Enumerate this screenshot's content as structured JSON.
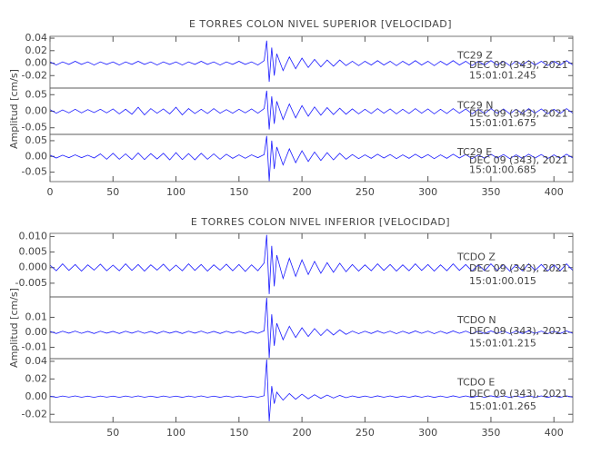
{
  "chart_data": [
    {
      "type": "line",
      "title": "E TORRES COLON NIVEL SUPERIOR [VELOCIDAD]",
      "ylabel": "Amplitud [cm/s]",
      "xlim": [
        0,
        415
      ],
      "xticks": [
        0,
        50,
        100,
        150,
        200,
        250,
        300,
        350,
        400
      ],
      "x": [
        0,
        5,
        10,
        15,
        20,
        25,
        30,
        35,
        40,
        45,
        50,
        55,
        60,
        65,
        70,
        75,
        80,
        85,
        90,
        95,
        100,
        105,
        110,
        115,
        120,
        125,
        130,
        135,
        140,
        145,
        150,
        155,
        160,
        165,
        170,
        172,
        174,
        176,
        178,
        180,
        185,
        190,
        195,
        200,
        205,
        210,
        215,
        220,
        225,
        230,
        235,
        240,
        245,
        250,
        255,
        260,
        265,
        270,
        275,
        280,
        285,
        290,
        295,
        300,
        305,
        310,
        315,
        320,
        325,
        330,
        335,
        340,
        345,
        350,
        355,
        360,
        365,
        370,
        375,
        380,
        385,
        390,
        395,
        400,
        405,
        410,
        415
      ],
      "panels": [
        {
          "ylim": [
            -0.04,
            0.043
          ],
          "yticks": [
            0.04,
            0.02,
            {
              "value": 0,
              "label": "0.00"
            },
            -0.02
          ],
          "date": "DEC 09 (343), 2021",
          "time": "15:01:01.245",
          "series": [
            {
              "name": "TC29   Z",
              "color": "#1a1aff",
              "values": [
                0.002,
                -0.003,
                0.002,
                -0.002,
                0.003,
                -0.002,
                0.002,
                -0.003,
                0.002,
                -0.002,
                0.002,
                -0.003,
                0.002,
                -0.002,
                0.003,
                -0.002,
                0.002,
                -0.003,
                0.002,
                -0.002,
                0.002,
                -0.003,
                0.002,
                -0.002,
                0.003,
                -0.002,
                0.002,
                -0.003,
                0.002,
                -0.002,
                0.003,
                -0.002,
                0.002,
                -0.003,
                0.004,
                0.036,
                -0.03,
                0.025,
                -0.02,
                0.015,
                -0.012,
                0.01,
                -0.009,
                0.008,
                -0.007,
                0.006,
                -0.006,
                0.005,
                -0.005,
                0.005,
                -0.004,
                0.003,
                -0.004,
                0.003,
                -0.003,
                0.004,
                -0.003,
                0.003,
                -0.004,
                0.003,
                -0.003,
                0.004,
                -0.003,
                0.003,
                -0.004,
                0.003,
                -0.003,
                0.004,
                -0.003,
                0.003,
                -0.004,
                0.003,
                -0.003,
                0.004,
                -0.003,
                0.003,
                -0.004,
                0.003,
                -0.003,
                0.004,
                -0.003,
                0.003,
                -0.004,
                0.003,
                -0.003,
                0.004,
                -0.003
              ]
            }
          ]
        },
        {
          "ylim": [
            -0.07,
            0.07
          ],
          "yticks": [
            0.05,
            {
              "value": 0,
              "label": "0.00"
            },
            -0.05
          ],
          "date": "DEC 09 (343), 2021",
          "time": "15:01:01.675",
          "series": [
            {
              "name": "TC29   N",
              "color": "#1a1aff",
              "values": [
                0.005,
                -0.006,
                0.004,
                -0.005,
                0.006,
                -0.005,
                0.005,
                -0.004,
                0.006,
                -0.005,
                0.007,
                -0.008,
                0.006,
                -0.009,
                0.012,
                -0.011,
                0.008,
                -0.006,
                0.007,
                -0.008,
                0.012,
                -0.011,
                0.008,
                -0.007,
                0.006,
                -0.007,
                0.008,
                -0.006,
                0.005,
                -0.006,
                0.006,
                -0.005,
                0.007,
                -0.006,
                0.008,
                0.062,
                -0.055,
                0.045,
                -0.038,
                0.03,
                -0.025,
                0.022,
                -0.02,
                0.017,
                -0.015,
                0.013,
                -0.012,
                0.011,
                -0.01,
                0.009,
                -0.009,
                0.007,
                -0.008,
                0.006,
                -0.007,
                0.008,
                -0.006,
                0.007,
                -0.008,
                0.006,
                -0.007,
                0.008,
                -0.006,
                0.007,
                -0.008,
                0.006,
                -0.007,
                0.008,
                -0.006,
                0.007,
                -0.008,
                0.006,
                -0.007,
                0.008,
                -0.006,
                0.007,
                -0.008,
                0.006,
                -0.007,
                0.008,
                -0.006,
                0.007,
                -0.008,
                0.006,
                -0.007,
                0.008,
                -0.006
              ]
            }
          ]
        },
        {
          "ylim": [
            -0.08,
            0.07
          ],
          "yticks": [
            0.05,
            {
              "value": 0,
              "label": "0.00"
            },
            -0.05
          ],
          "date": "DEC 09 (343), 2021",
          "time": "15:01:00.685",
          "series": [
            {
              "name": "TC29   E",
              "color": "#1a1aff",
              "values": [
                0.004,
                -0.005,
                0.004,
                -0.004,
                0.005,
                -0.004,
                0.004,
                -0.005,
                0.008,
                -0.009,
                0.01,
                -0.009,
                0.008,
                -0.01,
                0.011,
                -0.01,
                0.009,
                -0.008,
                0.01,
                -0.011,
                0.012,
                -0.01,
                0.009,
                -0.011,
                0.01,
                -0.009,
                0.008,
                -0.009,
                0.007,
                -0.006,
                0.005,
                -0.006,
                0.005,
                -0.004,
                0.006,
                0.065,
                -0.078,
                0.05,
                -0.04,
                0.03,
                -0.027,
                0.024,
                -0.02,
                0.018,
                -0.016,
                0.014,
                -0.013,
                0.012,
                -0.011,
                0.01,
                -0.009,
                0.006,
                -0.007,
                0.005,
                -0.006,
                0.007,
                -0.005,
                0.006,
                -0.007,
                0.005,
                -0.006,
                0.007,
                -0.005,
                0.006,
                -0.007,
                0.005,
                -0.006,
                0.007,
                -0.005,
                0.006,
                -0.007,
                0.005,
                -0.006,
                0.007,
                -0.005,
                0.006,
                -0.007,
                0.005,
                -0.006,
                0.007,
                -0.005,
                0.006,
                -0.007,
                0.005,
                -0.006,
                0.007,
                -0.005
              ]
            }
          ]
        }
      ]
    },
    {
      "type": "line",
      "title": "E TORRES COLON NIVEL INFERIOR [VELOCIDAD]",
      "ylabel": "Amplitud [cm/s]",
      "xlim": [
        0,
        415
      ],
      "xticks": [
        50,
        100,
        150,
        200,
        250,
        300,
        350,
        400
      ],
      "x": [
        0,
        5,
        10,
        15,
        20,
        25,
        30,
        35,
        40,
        45,
        50,
        55,
        60,
        65,
        70,
        75,
        80,
        85,
        90,
        95,
        100,
        105,
        110,
        115,
        120,
        125,
        130,
        135,
        140,
        145,
        150,
        155,
        160,
        165,
        170,
        172,
        174,
        176,
        178,
        180,
        185,
        190,
        195,
        200,
        205,
        210,
        215,
        220,
        225,
        230,
        235,
        240,
        245,
        250,
        255,
        260,
        265,
        270,
        275,
        280,
        285,
        290,
        295,
        300,
        305,
        310,
        315,
        320,
        325,
        330,
        335,
        340,
        345,
        350,
        355,
        360,
        365,
        370,
        375,
        380,
        385,
        390,
        395,
        400,
        405,
        410,
        415
      ],
      "panels": [
        {
          "ylim": [
            -0.0094,
            0.011
          ],
          "yticks": [
            {
              "value": 0.01,
              "label": "0.010"
            },
            0.005,
            {
              "value": 0,
              "label": "0.000"
            },
            -0.005
          ],
          "date": "DEC 09 (343), 2021",
          "time": "15:01:00.015",
          "series": [
            {
              "name": "TCDO   Z",
              "color": "#1a1aff",
              "values": [
                0.0008,
                -0.001,
                0.0012,
                -0.0009,
                0.001,
                -0.0011,
                0.0009,
                -0.0008,
                0.0011,
                -0.001,
                0.0008,
                -0.001,
                0.0012,
                -0.0009,
                0.001,
                -0.0011,
                0.0009,
                -0.0008,
                0.0011,
                -0.001,
                0.0008,
                -0.001,
                0.0012,
                -0.0009,
                0.001,
                -0.0011,
                0.0009,
                -0.0008,
                0.0011,
                -0.001,
                0.001,
                -0.0012,
                0.0009,
                -0.001,
                0.0015,
                0.0105,
                -0.0085,
                0.007,
                -0.006,
                0.004,
                -0.0035,
                0.003,
                -0.0028,
                0.0025,
                -0.0022,
                0.002,
                -0.0018,
                0.0016,
                -0.0015,
                0.0014,
                -0.0013,
                0.001,
                -0.0011,
                0.0009,
                -0.001,
                0.0012,
                -0.0009,
                0.001,
                -0.0011,
                0.0009,
                -0.001,
                0.0012,
                -0.0009,
                0.001,
                -0.0011,
                0.0009,
                -0.001,
                0.0012,
                -0.0009,
                0.001,
                -0.0011,
                0.0009,
                -0.001,
                0.0012,
                -0.0009,
                0.001,
                -0.0011,
                0.0009,
                -0.001,
                0.0012,
                -0.0009,
                0.001,
                -0.0011,
                0.0009,
                -0.001,
                0.0012,
                -0.0009
              ]
            }
          ]
        },
        {
          "ylim": [
            -0.0176,
            0.0236
          ],
          "yticks": [
            0.01,
            {
              "value": 0,
              "label": "0.00"
            },
            -0.01
          ],
          "date": "DEC 09 (343), 2021",
          "time": "15:01:01.215",
          "series": [
            {
              "name": "TCDO   N",
              "color": "#1a1aff",
              "values": [
                0.0006,
                -0.0008,
                0.0007,
                -0.0006,
                0.0008,
                -0.0007,
                0.0006,
                -0.0008,
                0.0007,
                -0.0006,
                0.0006,
                -0.0008,
                0.0007,
                -0.0006,
                0.0008,
                -0.0007,
                0.0006,
                -0.0008,
                0.0007,
                -0.0006,
                0.0006,
                -0.0008,
                0.0007,
                -0.0006,
                0.0008,
                -0.0007,
                0.0006,
                -0.0008,
                0.0007,
                -0.0006,
                0.0007,
                -0.0008,
                0.0006,
                -0.0007,
                0.001,
                0.023,
                -0.017,
                0.012,
                -0.009,
                0.006,
                -0.005,
                0.004,
                -0.0035,
                0.003,
                -0.0028,
                0.0025,
                -0.0022,
                0.002,
                -0.0018,
                0.0016,
                -0.0014,
                0.0008,
                -0.0009,
                0.0007,
                -0.0008,
                0.0009,
                -0.0007,
                0.0008,
                -0.0009,
                0.0007,
                -0.0008,
                0.0009,
                -0.0007,
                0.0008,
                -0.0009,
                0.0007,
                -0.0008,
                0.0009,
                -0.0007,
                0.0008,
                -0.0009,
                0.0007,
                -0.0008,
                0.0009,
                -0.0007,
                0.0008,
                -0.0009,
                0.0007,
                -0.0008,
                0.0009,
                -0.0007,
                0.0008,
                -0.0009,
                0.0007,
                -0.0008,
                0.0009,
                -0.0007
              ]
            }
          ]
        },
        {
          "ylim": [
            -0.029,
            0.043
          ],
          "yticks": [
            0.04,
            0.02,
            {
              "value": 0,
              "label": "0.00"
            },
            -0.02
          ],
          "date": "DEC 09 (343), 2021",
          "time": "15:01:01.265",
          "series": [
            {
              "name": "TCDO   E",
              "color": "#1a1aff",
              "values": [
                0.0006,
                -0.0008,
                0.0007,
                -0.0006,
                0.0008,
                -0.0007,
                0.0006,
                -0.0008,
                0.0007,
                -0.0006,
                0.0006,
                -0.0008,
                0.0007,
                -0.0006,
                0.0008,
                -0.0007,
                0.0006,
                -0.0008,
                0.0007,
                -0.0006,
                0.0006,
                -0.0008,
                0.0007,
                -0.0006,
                0.0008,
                -0.0007,
                0.0006,
                -0.0008,
                0.0007,
                -0.0006,
                0.0007,
                -0.0008,
                0.0006,
                -0.0007,
                0.001,
                0.042,
                -0.028,
                0.012,
                -0.008,
                0.005,
                -0.004,
                0.0035,
                -0.003,
                0.0028,
                -0.0025,
                0.0022,
                -0.002,
                0.0018,
                -0.0016,
                0.0014,
                -0.0012,
                0.0008,
                -0.0009,
                0.0007,
                -0.0008,
                0.0009,
                -0.0007,
                0.0008,
                -0.0009,
                0.0007,
                -0.0008,
                0.0009,
                -0.0007,
                0.0008,
                -0.0009,
                0.0007,
                -0.0008,
                0.0009,
                -0.0007,
                0.0008,
                -0.0009,
                0.0007,
                -0.0008,
                0.0009,
                -0.0007,
                0.0008,
                -0.0009,
                0.0007,
                -0.0008,
                0.0009,
                -0.0007,
                0.0008,
                -0.0009,
                0.0007,
                -0.0008,
                0.0009,
                -0.0007
              ]
            }
          ]
        }
      ]
    }
  ]
}
